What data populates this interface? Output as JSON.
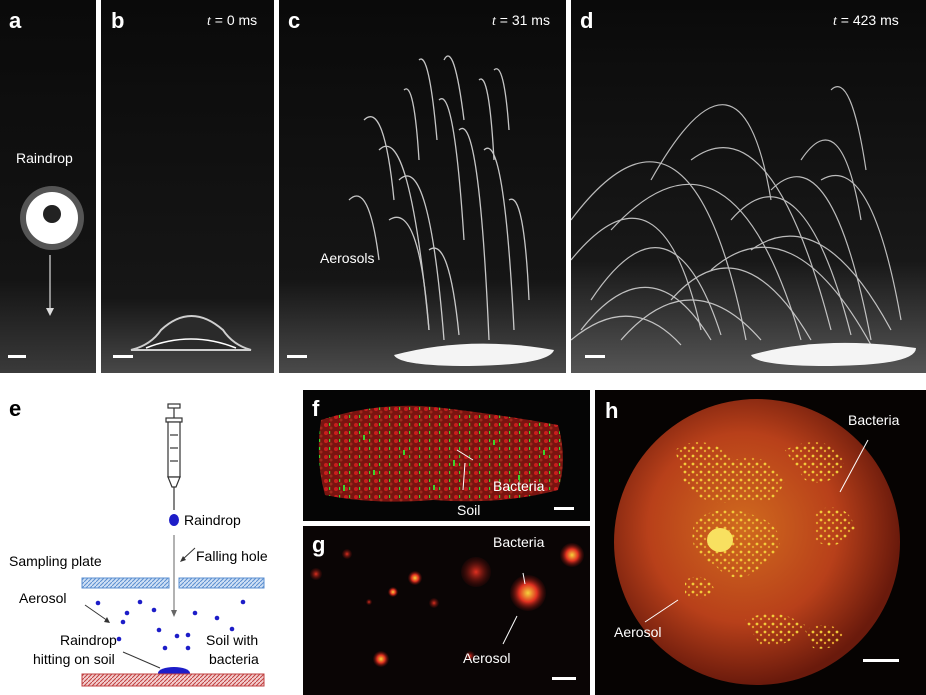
{
  "panels": {
    "a": {
      "letter": "a",
      "raindrop_label": "Raindrop"
    },
    "b": {
      "letter": "b",
      "time_prefix": "t",
      "time_value": " = 0 ms"
    },
    "c": {
      "letter": "c",
      "time_prefix": "t",
      "time_value": " = 31 ms",
      "aerosols_label": "Aerosols"
    },
    "d": {
      "letter": "d",
      "time_prefix": "t",
      "time_value": " = 423 ms"
    },
    "e": {
      "letter": "e",
      "raindrop": "Raindrop",
      "falling_hole": "Falling hole",
      "sampling_plate": "Sampling plate",
      "aerosol": "Aerosol",
      "hitting_1": "Raindrop",
      "hitting_2": "hitting on soil",
      "soil_1": "Soil with",
      "soil_2": "bacteria"
    },
    "f": {
      "letter": "f",
      "bacteria": "Bacteria",
      "soil": "Soil"
    },
    "g": {
      "letter": "g",
      "bacteria": "Bacteria",
      "aerosol": "Aerosol"
    },
    "h": {
      "letter": "h",
      "bacteria": "Bacteria",
      "aerosol": "Aerosol"
    }
  },
  "colors": {
    "diagram_blue": "#1d1dc8",
    "plate_blue": "#5b8fd0",
    "soil_red": "#c04040",
    "fluor_red": "#c81e1e",
    "fluor_yellow": "#f5d23c",
    "fluor_green": "#3cd22d"
  }
}
